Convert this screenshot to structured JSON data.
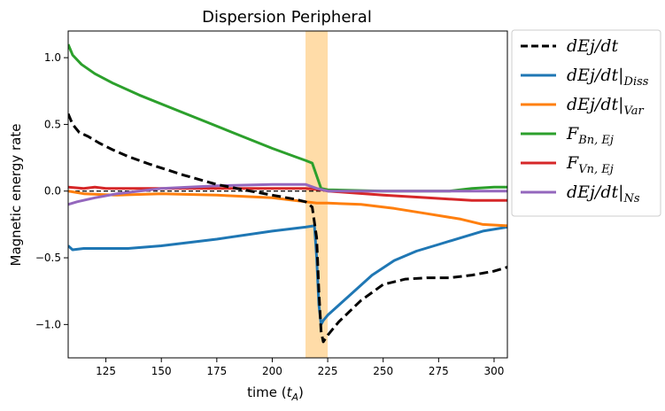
{
  "chart_data": {
    "type": "line",
    "title": "Dispersion Peripheral",
    "xlabel": "time (t_A)",
    "xlabel_prefix": "time (",
    "xlabel_var": "t",
    "xlabel_sub": "A",
    "xlabel_suffix": ")",
    "ylabel": "Magnetic energy rate",
    "xlim": [
      108,
      306
    ],
    "ylim": [
      -1.25,
      1.2
    ],
    "xticks": [
      125,
      150,
      175,
      200,
      225,
      250,
      275,
      300
    ],
    "yticks": [
      1.0,
      0.5,
      0.0,
      -0.5,
      -1.0
    ],
    "ytick_labels": [
      "1.0",
      "0.5",
      "0.0",
      "−0.5",
      "−1.0"
    ],
    "shaded_region": {
      "x": [
        215,
        225
      ],
      "color": "#ffdca8"
    },
    "zero_line": {
      "y": 0,
      "color": "#000000",
      "dash": "5,3"
    },
    "legend_position": "outside-right",
    "series": [
      {
        "name": "dEj/dt",
        "label_main": "dEj/dt",
        "label_sub": "",
        "color": "#000000",
        "dash": "10,5",
        "x": [
          108,
          110,
          113,
          117,
          122,
          128,
          135,
          145,
          160,
          175,
          190,
          200,
          210,
          215,
          218,
          220,
          221,
          222,
          223,
          225,
          230,
          240,
          250,
          260,
          270,
          280,
          290,
          300,
          306
        ],
        "y": [
          0.58,
          0.5,
          0.44,
          0.41,
          0.36,
          0.31,
          0.26,
          0.2,
          0.12,
          0.05,
          0.0,
          -0.03,
          -0.06,
          -0.08,
          -0.12,
          -0.35,
          -0.75,
          -1.05,
          -1.13,
          -1.08,
          -0.98,
          -0.82,
          -0.7,
          -0.66,
          -0.65,
          -0.65,
          -0.63,
          -0.6,
          -0.57
        ]
      },
      {
        "name": "dEj/dt|Diss",
        "label_main": "dEj/dt|",
        "label_sub": "Diss",
        "color": "#1f77b4",
        "dash": "",
        "x": [
          108,
          110,
          115,
          125,
          135,
          150,
          175,
          200,
          215,
          219,
          220,
          221,
          222,
          223,
          225,
          235,
          245,
          255,
          265,
          275,
          285,
          295,
          306
        ],
        "y": [
          -0.41,
          -0.44,
          -0.43,
          -0.43,
          -0.43,
          -0.41,
          -0.36,
          -0.3,
          -0.27,
          -0.26,
          -0.5,
          -0.85,
          -1.0,
          -0.97,
          -0.93,
          -0.78,
          -0.63,
          -0.52,
          -0.45,
          -0.4,
          -0.35,
          -0.3,
          -0.27
        ]
      },
      {
        "name": "dEj/dt|Var",
        "label_main": "dEj/dt|",
        "label_sub": "Var",
        "color": "#ff7f0e",
        "dash": "",
        "x": [
          108,
          115,
          130,
          150,
          175,
          200,
          215,
          220,
          225,
          240,
          255,
          270,
          285,
          295,
          306
        ],
        "y": [
          0.0,
          -0.02,
          -0.03,
          -0.02,
          -0.03,
          -0.05,
          -0.08,
          -0.09,
          -0.09,
          -0.1,
          -0.13,
          -0.17,
          -0.21,
          -0.25,
          -0.26
        ]
      },
      {
        "name": "F_Bn,Ej",
        "label_main": "F",
        "label_sub": "Bn, Ej",
        "color": "#2ca02c",
        "dash": "",
        "x": [
          108,
          110,
          114,
          120,
          128,
          140,
          155,
          170,
          185,
          200,
          210,
          215,
          218,
          222,
          225,
          250,
          280,
          290,
          300,
          306
        ],
        "y": [
          1.1,
          1.02,
          0.95,
          0.88,
          0.81,
          0.72,
          0.62,
          0.52,
          0.42,
          0.32,
          0.26,
          0.23,
          0.21,
          0.02,
          0.01,
          0.0,
          0.0,
          0.02,
          0.03,
          0.03
        ]
      },
      {
        "name": "F_Vn,Ej",
        "label_main": "F",
        "label_sub": "Vn, Ej",
        "color": "#d62728",
        "dash": "",
        "x": [
          108,
          115,
          120,
          125,
          135,
          150,
          175,
          200,
          215,
          222,
          225,
          250,
          270,
          290,
          306
        ],
        "y": [
          0.03,
          0.02,
          0.03,
          0.02,
          0.02,
          0.02,
          0.02,
          0.02,
          0.02,
          0.01,
          0.0,
          -0.03,
          -0.05,
          -0.07,
          -0.07
        ]
      },
      {
        "name": "dEj/dt|Ns",
        "label_main": "dEj/dt|",
        "label_sub": "Ns",
        "color": "#9467bd",
        "dash": "",
        "x": [
          108,
          112,
          120,
          130,
          140,
          150,
          175,
          200,
          215,
          220,
          225,
          250,
          275,
          306
        ],
        "y": [
          -0.1,
          -0.08,
          -0.05,
          -0.02,
          0.0,
          0.02,
          0.04,
          0.05,
          0.05,
          0.02,
          0.0,
          0.0,
          0.0,
          0.0
        ]
      }
    ]
  }
}
